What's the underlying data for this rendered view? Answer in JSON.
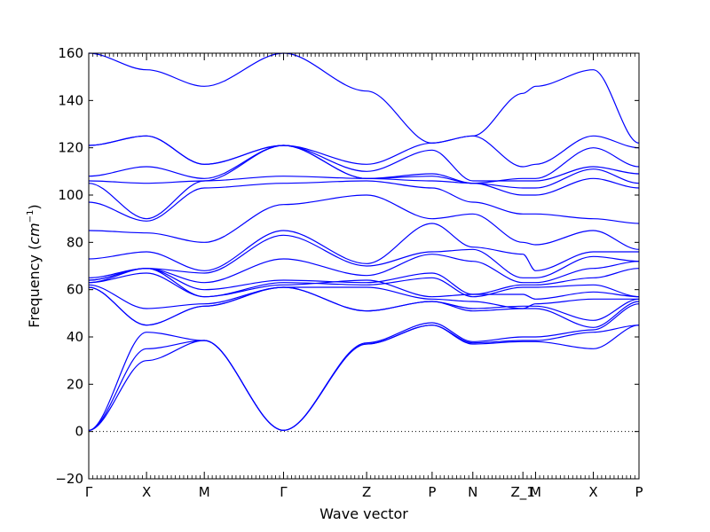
{
  "chart_data": {
    "type": "line",
    "title": "",
    "xlabel": "Wave vector",
    "ylabel_text": "Frequency (",
    "ylabel_unit_base": "cm",
    "ylabel_unit_exp": "−1",
    "ylabel_close": ")",
    "ylim": [
      -20,
      160
    ],
    "yticks": [
      -20,
      0,
      20,
      40,
      60,
      80,
      100,
      120,
      140,
      160
    ],
    "high_symmetry_points": [
      {
        "label": "Γ",
        "x": 0.0
      },
      {
        "label": "X",
        "x": 0.105
      },
      {
        "label": "M",
        "x": 0.21
      },
      {
        "label": "Γ",
        "x": 0.354
      },
      {
        "label": "Z",
        "x": 0.505
      },
      {
        "label": "P",
        "x": 0.624
      },
      {
        "label": "N",
        "x": 0.698
      },
      {
        "label": "Z_1",
        "x": 0.789
      },
      {
        "label": "M",
        "x": 0.812
      },
      {
        "label": "X",
        "x": 0.917
      },
      {
        "label": "P",
        "x": 1.0
      }
    ],
    "zero_line": true,
    "grid": false,
    "line_color": "#0000ff",
    "series": [
      {
        "values": [
          0.5,
          30,
          38.5,
          0.5,
          37,
          45,
          37,
          38,
          38,
          35,
          45
        ]
      },
      {
        "values": [
          0.5,
          35,
          38.5,
          0.5,
          37,
          45,
          37.5,
          38.5,
          38.5,
          42,
          45
        ]
      },
      {
        "values": [
          0.5,
          42,
          38.5,
          0.5,
          37.5,
          46,
          38,
          40,
          40,
          43,
          54
        ]
      },
      {
        "values": [
          61,
          45,
          53,
          61,
          51,
          55,
          51,
          52,
          52,
          44,
          55
        ]
      },
      {
        "values": [
          61,
          45,
          53,
          61,
          51,
          55,
          52,
          53,
          53,
          47,
          56
        ]
      },
      {
        "values": [
          62,
          52,
          54,
          61,
          61,
          56,
          55,
          52,
          54,
          56,
          56
        ]
      },
      {
        "values": [
          63,
          67,
          57,
          62,
          64,
          57,
          58,
          58,
          56,
          59,
          57
        ]
      },
      {
        "values": [
          63,
          69,
          57,
          63,
          62,
          65,
          57,
          61,
          61,
          62,
          57
        ]
      },
      {
        "values": [
          64,
          69,
          60,
          64,
          63,
          67,
          58,
          62,
          62,
          65,
          69
        ]
      },
      {
        "values": [
          64,
          69,
          63,
          73,
          66,
          75,
          72,
          63,
          63,
          69,
          72
        ]
      },
      {
        "values": [
          65,
          69,
          67,
          83,
          70,
          76,
          77,
          65,
          65,
          74,
          72
        ]
      },
      {
        "values": [
          73,
          76,
          68,
          85,
          71,
          88,
          78,
          75,
          68,
          76,
          76
        ]
      },
      {
        "values": [
          85,
          84,
          80,
          96,
          100,
          90,
          92,
          80,
          79,
          85,
          77
        ]
      },
      {
        "values": [
          97,
          89,
          103,
          105,
          106,
          103,
          97,
          92,
          92,
          90,
          88
        ]
      },
      {
        "values": [
          105,
          90,
          106,
          108,
          107,
          106,
          105,
          100,
          100,
          107,
          103
        ]
      },
      {
        "values": [
          106,
          105,
          106,
          121,
          107,
          109,
          105,
          103,
          103,
          111,
          105
        ]
      },
      {
        "values": [
          108,
          112,
          107,
          121,
          110,
          119,
          106,
          106,
          106,
          112,
          109
        ]
      },
      {
        "values": [
          121,
          125,
          113,
          121,
          107,
          108,
          105,
          107,
          107,
          120,
          112
        ]
      },
      {
        "values": [
          121,
          125,
          113,
          121,
          113,
          122,
          125,
          112,
          113,
          125,
          120
        ]
      },
      {
        "values": [
          160,
          153,
          146,
          160,
          144,
          122,
          125,
          143,
          146,
          153,
          122
        ]
      }
    ]
  }
}
